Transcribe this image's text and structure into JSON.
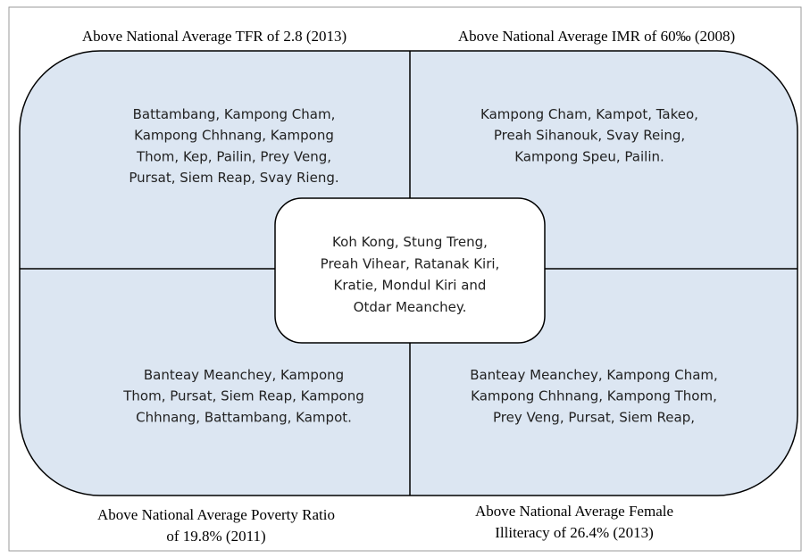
{
  "quadrants": [
    {
      "label": [
        "Above National Average TFR of 2.8 (2013)"
      ],
      "text": [
        "Battambang, Kampong Cham,",
        "Kampong Chhnang, Kampong",
        "Thom, Kep, Pailin, Prey Veng,",
        "Pursat, Siem Reap, Svay Rieng."
      ]
    },
    {
      "label": [
        "Above National Average IMR of 60‰ (2008)"
      ],
      "text": [
        "Kampong Cham, Kampot, Takeo,",
        "Preah Sihanouk, Svay Reing,",
        "Kampong Speu, Pailin."
      ]
    },
    {
      "label": [
        "Above National Average Poverty Ratio",
        "of 19.8% (2011)"
      ],
      "text": [
        "Banteay Meanchey, Kampong",
        "Thom, Pursat, Siem Reap, Kampong",
        "Chhnang, Battambang, Kampot."
      ]
    },
    {
      "label": [
        "Above National Average Female",
        "Illiteracy of 26.4% (2013)"
      ],
      "text": [
        "Banteay Meanchey, Kampong Cham,",
        "Kampong Chhnang, Kampong Thom,",
        "Prey Veng, Pursat, Siem Reap,"
      ]
    }
  ],
  "center": [
    "Koh Kong, Stung Treng,",
    "Preah Vihear, Ratanak Kiri,",
    "Kratie, Mondul Kiri and",
    "Otdar Meanchey."
  ]
}
